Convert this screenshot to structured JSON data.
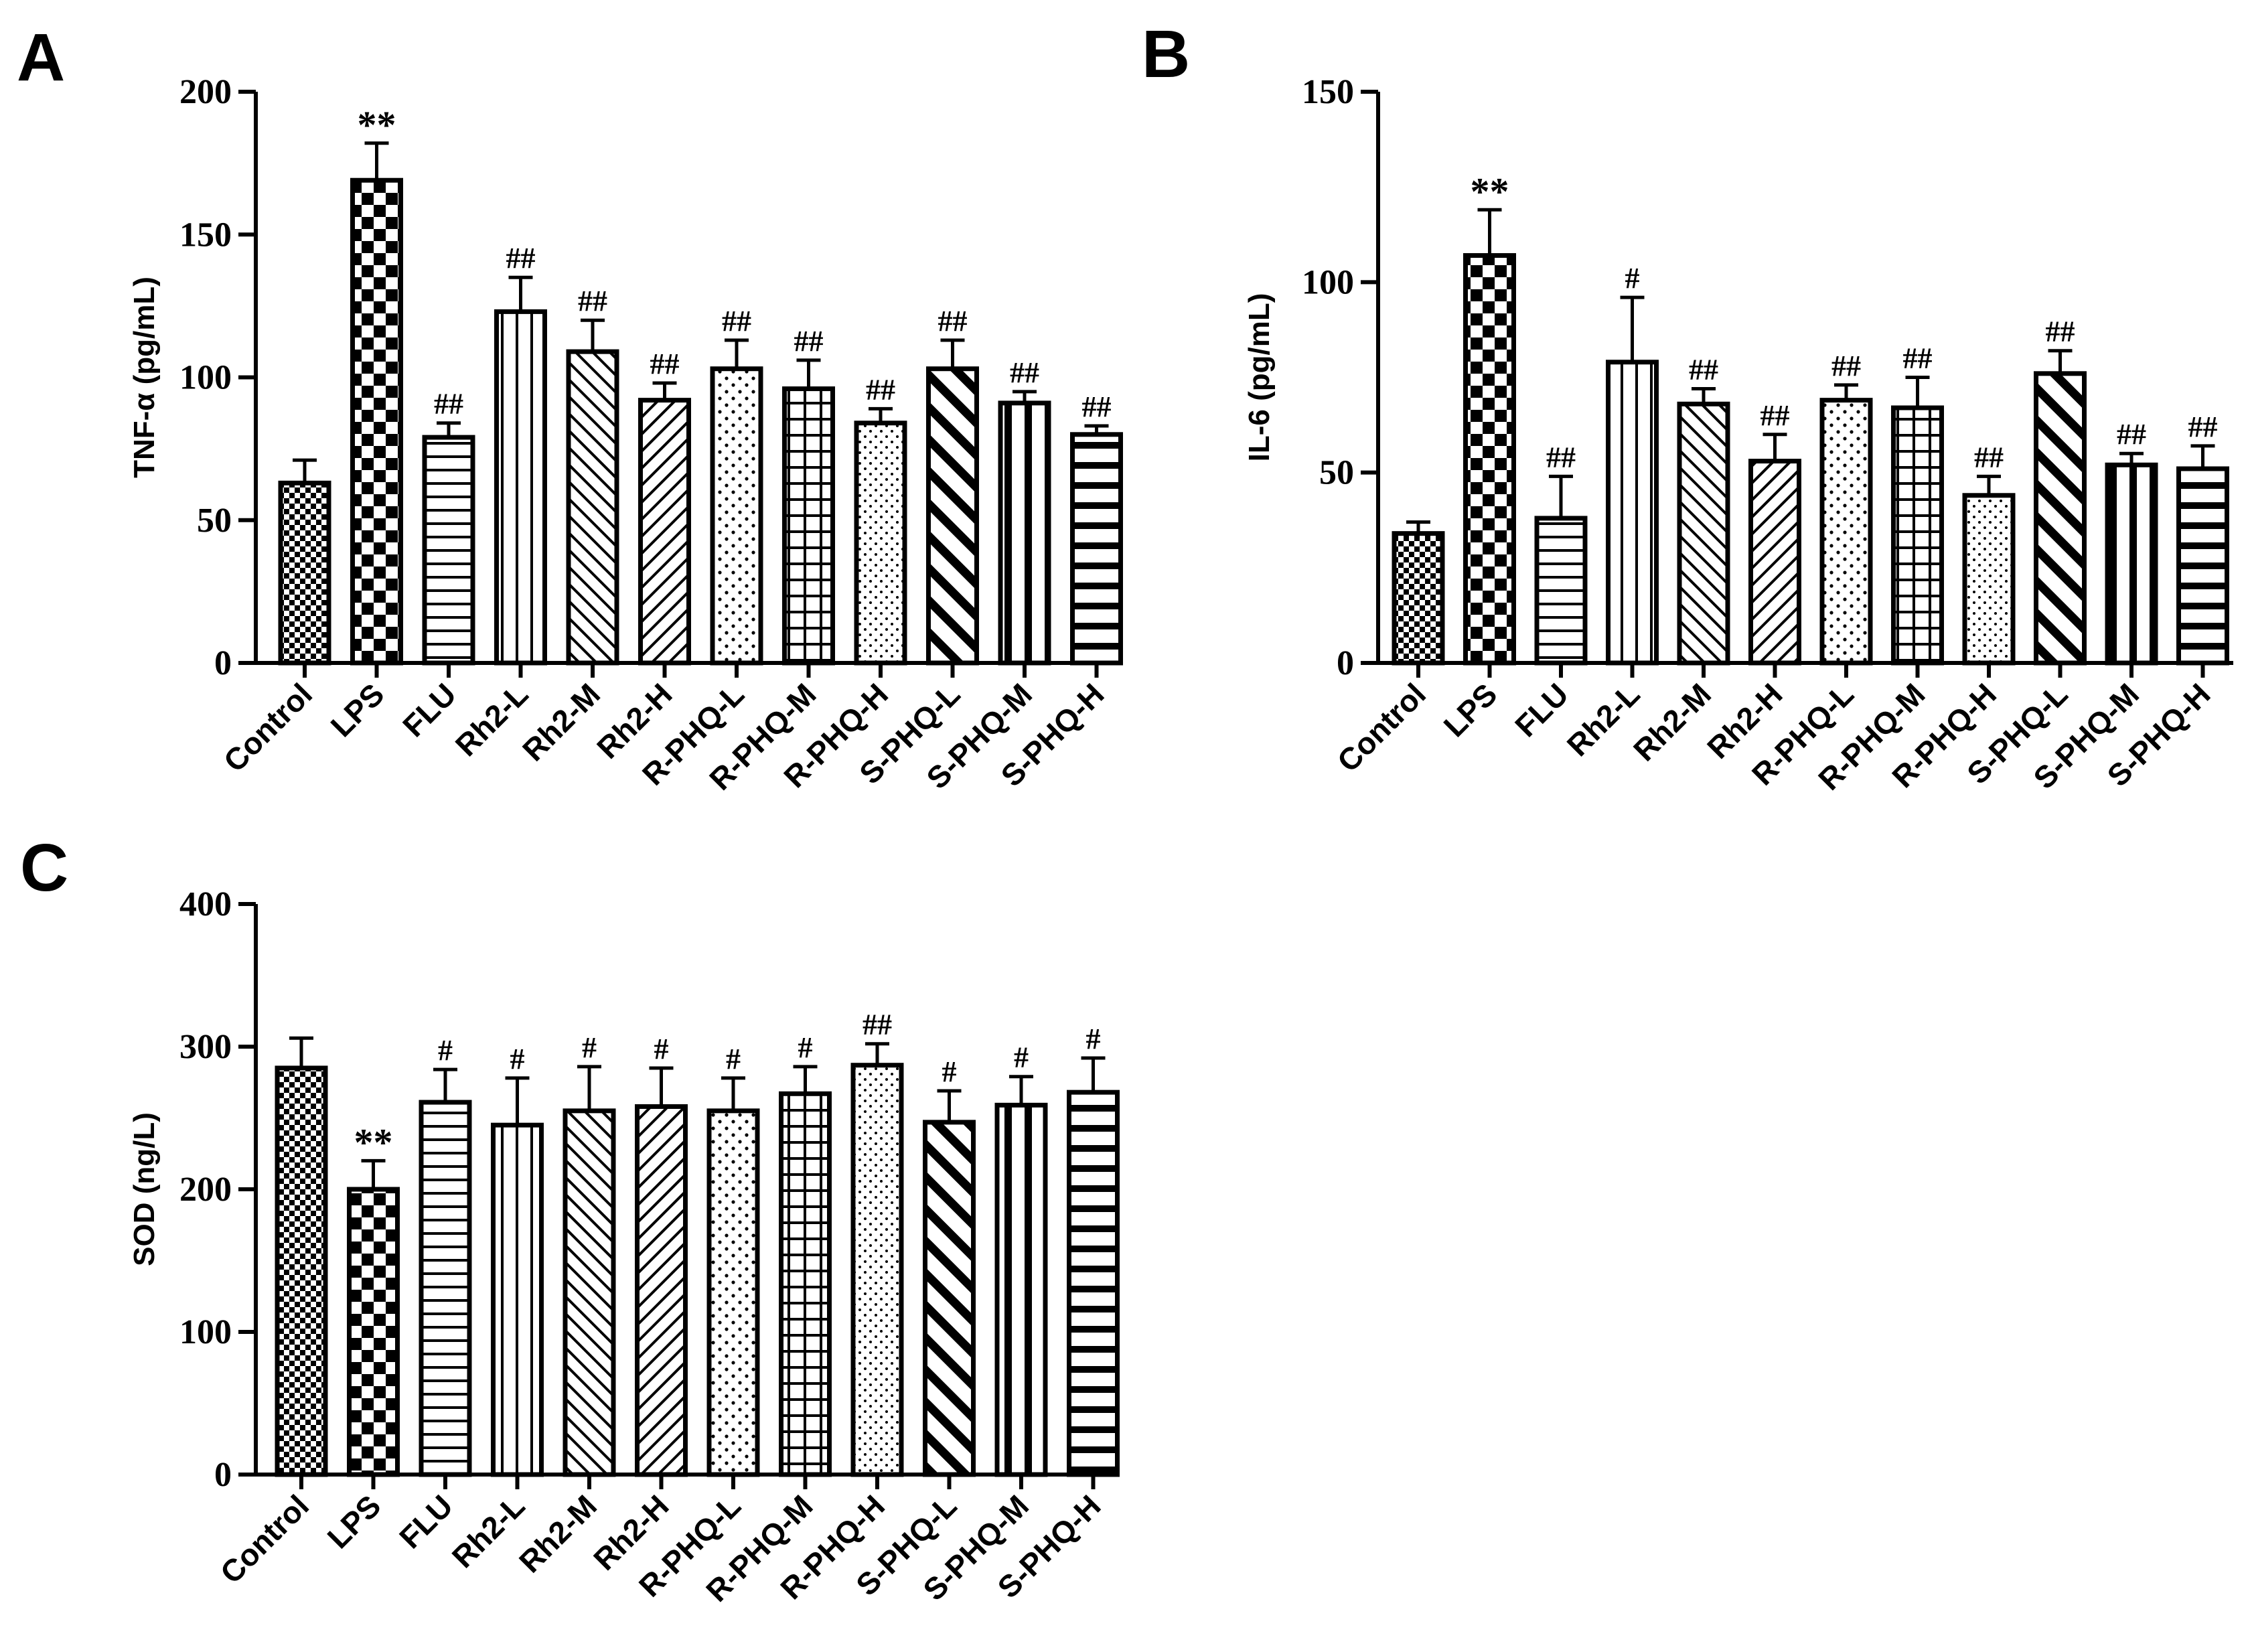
{
  "chart_data": [
    {
      "type": "bar",
      "panel": "A",
      "title": "",
      "xlabel": "",
      "ylabel": "TNF-α (pg/mL)",
      "ylim": [
        0,
        200
      ],
      "yticks": [
        0,
        50,
        100,
        150,
        200
      ],
      "categories": [
        "Control",
        "LPS",
        "FLU",
        "Rh2-L",
        "Rh2-M",
        "Rh2-H",
        "R-PHQ-L",
        "R-PHQ-M",
        "R-PHQ-H",
        "S-PHQ-L",
        "S-PHQ-M",
        "S-PHQ-H"
      ],
      "values": [
        63,
        169,
        79,
        123,
        109,
        92,
        103,
        96,
        84,
        103,
        91,
        80
      ],
      "errors": [
        8,
        13,
        5,
        12,
        11,
        6,
        10,
        10,
        5,
        10,
        4,
        3
      ],
      "significance": [
        "",
        "**",
        "##",
        "##",
        "##",
        "##",
        "##",
        "##",
        "##",
        "##",
        "##",
        "##"
      ]
    },
    {
      "type": "bar",
      "panel": "B",
      "title": "",
      "xlabel": "",
      "ylabel": "IL-6 (pg/mL)",
      "ylim": [
        0,
        150
      ],
      "yticks": [
        0,
        50,
        100,
        150
      ],
      "categories": [
        "Control",
        "LPS",
        "FLU",
        "Rh2-L",
        "Rh2-M",
        "Rh2-H",
        "R-PHQ-L",
        "R-PHQ-M",
        "R-PHQ-H",
        "S-PHQ-L",
        "S-PHQ-M",
        "S-PHQ-H"
      ],
      "values": [
        34,
        107,
        38,
        79,
        68,
        53,
        69,
        67,
        44,
        76,
        52,
        51
      ],
      "errors": [
        3,
        12,
        11,
        17,
        4,
        7,
        4,
        8,
        5,
        6,
        3,
        6
      ],
      "significance": [
        "",
        "**",
        "##",
        "#",
        "##",
        "##",
        "##",
        "##",
        "##",
        "##",
        "##",
        "##"
      ]
    },
    {
      "type": "bar",
      "panel": "C",
      "title": "",
      "xlabel": "",
      "ylabel": "SOD (ng/L)",
      "ylim": [
        0,
        400
      ],
      "yticks": [
        0,
        100,
        200,
        300,
        400
      ],
      "categories": [
        "Control",
        "LPS",
        "FLU",
        "Rh2-L",
        "Rh2-M",
        "Rh2-H",
        "R-PHQ-L",
        "R-PHQ-M",
        "R-PHQ-H",
        "S-PHQ-L",
        "S-PHQ-M",
        "S-PHQ-H"
      ],
      "values": [
        285,
        200,
        261,
        245,
        255,
        258,
        255,
        267,
        287,
        247,
        259,
        268
      ],
      "errors": [
        21,
        20,
        23,
        33,
        31,
        27,
        23,
        19,
        15,
        22,
        20,
        24
      ],
      "significance": [
        "",
        "**",
        "#",
        "#",
        "#",
        "#",
        "#",
        "#",
        "##",
        "#",
        "#",
        "#"
      ]
    }
  ],
  "patterns": [
    "dense-check",
    "checker",
    "hlines",
    "vlines",
    "diag-fine",
    "diag-back",
    "dots",
    "grid",
    "dots-fine",
    "diag-bold",
    "vlines-bold",
    "hlines-bold"
  ],
  "colors": {
    "ink": "#000000",
    "paper": "#ffffff"
  }
}
